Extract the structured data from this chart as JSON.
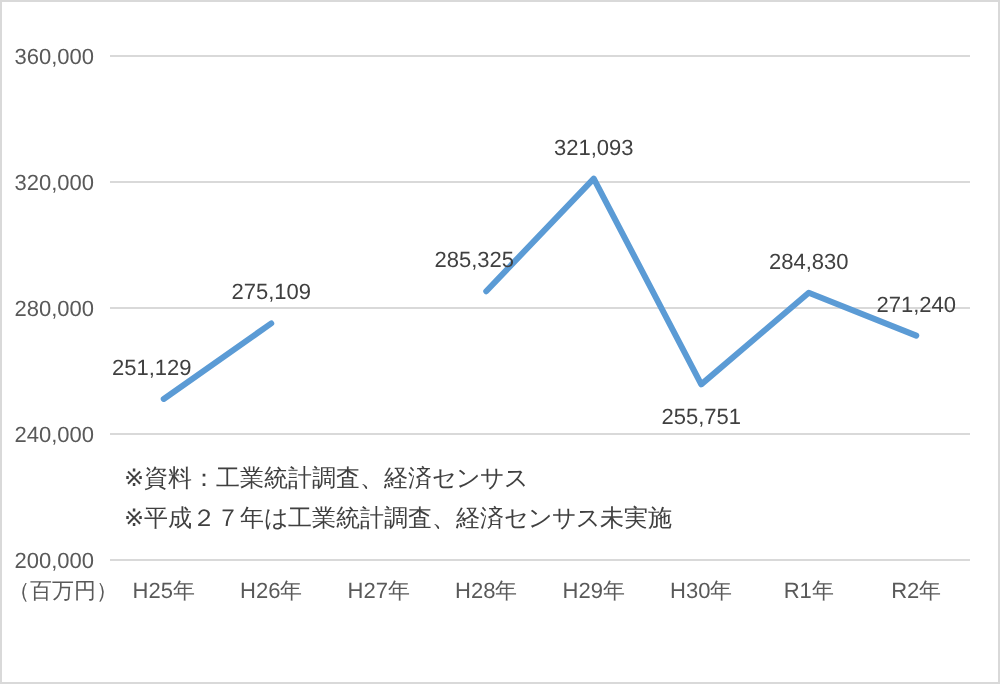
{
  "chart_data": {
    "type": "line",
    "categories": [
      "H25年",
      "H26年",
      "H27年",
      "H28年",
      "H29年",
      "H30年",
      "R1年",
      "R2年"
    ],
    "values": [
      251129,
      275109,
      null,
      285325,
      321093,
      255751,
      284830,
      271240
    ],
    "value_labels": [
      "251,129",
      "275,109",
      null,
      "285,325",
      "321,093",
      "255,751",
      "284,830",
      "271,240"
    ],
    "color": "#5b9bd5",
    "ylim": [
      200000,
      360000
    ],
    "yticks": [
      {
        "value": 200000,
        "label": "200,000"
      },
      {
        "value": 240000,
        "label": "240,000"
      },
      {
        "value": 280000,
        "label": "280,000"
      },
      {
        "value": 320000,
        "label": "320,000"
      },
      {
        "value": 360000,
        "label": "360,000"
      }
    ],
    "ylabel": "（百万円）",
    "grid": "y",
    "annotations": [
      "※資料：工業統計調査、経済センサス",
      "※平成２７年は工業統計調査、経済センサス未実施"
    ]
  }
}
